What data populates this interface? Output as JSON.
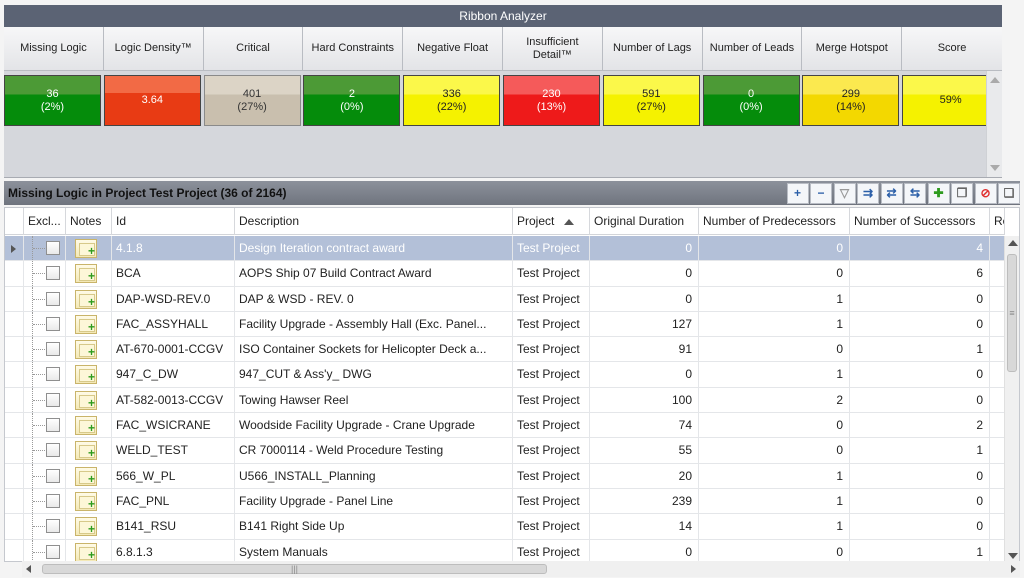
{
  "ribbon": {
    "title": "Ribbon Analyzer",
    "headers": [
      "Missing Logic",
      "Logic Density™",
      "Critical",
      "Hard Constraints",
      "Negative Float",
      "Insufficient Detail™",
      "Number of Lags",
      "Number of Leads",
      "Merge Hotspot",
      "Score"
    ],
    "tiles": [
      {
        "line1": "36",
        "line2": "(2%)",
        "color": "green"
      },
      {
        "line1": "3.64",
        "line2": "",
        "color": "orange"
      },
      {
        "line1": "401",
        "line2": "(27%)",
        "color": "gray"
      },
      {
        "line1": "2",
        "line2": "(0%)",
        "color": "green"
      },
      {
        "line1": "336",
        "line2": "(22%)",
        "color": "yellow"
      },
      {
        "line1": "230",
        "line2": "(13%)",
        "color": "red"
      },
      {
        "line1": "591",
        "line2": "(27%)",
        "color": "yellow"
      },
      {
        "line1": "0",
        "line2": "(0%)",
        "color": "green"
      },
      {
        "line1": "299",
        "line2": "(14%)",
        "color": "goldy"
      },
      {
        "line1": "59%",
        "line2": "",
        "color": "yellow"
      }
    ]
  },
  "grid": {
    "title": "Missing Logic in Project Test Project (36 of 2164)",
    "toolbar_icons": [
      "expand-all-icon",
      "collapse-all-icon",
      "filter-icon",
      "export-icon",
      "refresh-icon",
      "sync-icon",
      "add-note-icon",
      "copy-window-icon",
      "clear-icon",
      "duplicate-icon"
    ],
    "columns": {
      "exclude": "Excl...",
      "notes": "Notes",
      "id": "Id",
      "description": "Description",
      "project": "Project",
      "duration": "Original Duration",
      "predecessors": "Number of Predecessors",
      "successors": "Number of Successors",
      "re": "Re"
    },
    "rows": [
      {
        "id": "4.1.8",
        "description": "Design Iteration contract award",
        "project": "Test Project",
        "duration": "0",
        "pred": "0",
        "succ": "4",
        "selected": true
      },
      {
        "id": "BCA",
        "description": "AOPS Ship 07 Build Contract Award",
        "project": "Test Project",
        "duration": "0",
        "pred": "0",
        "succ": "6"
      },
      {
        "id": "DAP-WSD-REV.0",
        "description": "DAP & WSD - REV. 0",
        "project": "Test Project",
        "duration": "0",
        "pred": "1",
        "succ": "0"
      },
      {
        "id": "FAC_ASSYHALL",
        "description": "Facility Upgrade - Assembly Hall (Exc. Panel...",
        "project": "Test Project",
        "duration": "127",
        "pred": "1",
        "succ": "0"
      },
      {
        "id": "AT-670-0001-CCGV",
        "description": "ISO Container Sockets for Helicopter Deck a...",
        "project": "Test Project",
        "duration": "91",
        "pred": "0",
        "succ": "1"
      },
      {
        "id": "947_C_DW",
        "description": "947_CUT & Ass'y_ DWG",
        "project": "Test Project",
        "duration": "0",
        "pred": "1",
        "succ": "0"
      },
      {
        "id": "AT-582-0013-CCGV",
        "description": "Towing Hawser Reel",
        "project": "Test Project",
        "duration": "100",
        "pred": "2",
        "succ": "0"
      },
      {
        "id": "FAC_WSICRANE",
        "description": "Woodside Facility Upgrade - Crane Upgrade",
        "project": "Test Project",
        "duration": "74",
        "pred": "0",
        "succ": "2"
      },
      {
        "id": "WELD_TEST",
        "description": "CR 7000114 - Weld Procedure Testing",
        "project": "Test Project",
        "duration": "55",
        "pred": "0",
        "succ": "1"
      },
      {
        "id": "566_W_PL",
        "description": "U566_INSTALL_Planning",
        "project": "Test Project",
        "duration": "20",
        "pred": "1",
        "succ": "0"
      },
      {
        "id": "FAC_PNL",
        "description": "Facility Upgrade - Panel Line",
        "project": "Test Project",
        "duration": "239",
        "pred": "1",
        "succ": "0"
      },
      {
        "id": "B141_RSU",
        "description": "B141 Right Side Up",
        "project": "Test Project",
        "duration": "14",
        "pred": "1",
        "succ": "0"
      },
      {
        "id": "6.8.1.3",
        "description": "System Manuals",
        "project": "Test Project",
        "duration": "0",
        "pred": "0",
        "succ": "1"
      }
    ]
  }
}
